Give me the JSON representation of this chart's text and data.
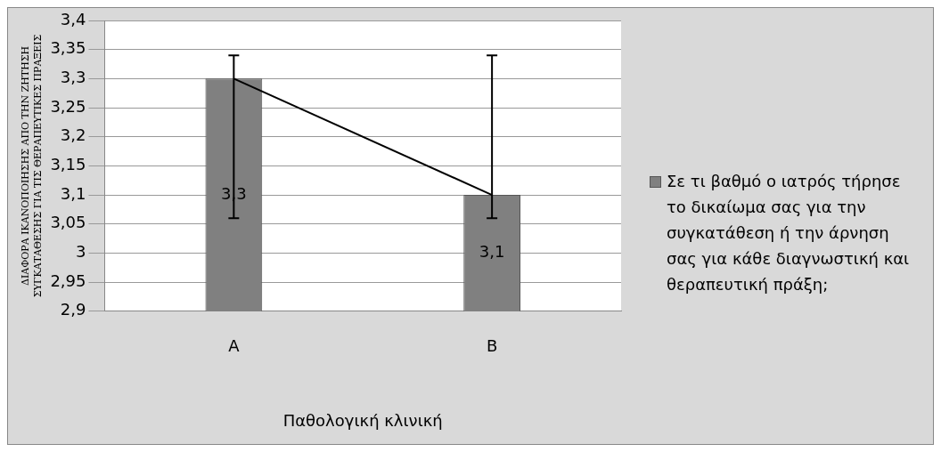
{
  "chart_data": {
    "type": "bar",
    "xlabel": "Παθολογική κλινική",
    "ylabel": "ΔΙΑΦΟΡΑ ΙΚΑΝΟΠΟΙΗΣΗΣ ΑΠΟ ΤΗΝ ΖΗΤΗΣΗ\nΣΥΓΚΑΤΑΘΕΣΗΣ ΓΙΑ ΤΙΣ ΘΕΡΑΠΕΥΤΙΚΕΣ ΠΡΑΞΕΙΣ",
    "categories": [
      "A",
      "B"
    ],
    "series": [
      {
        "name": "Σε τι βαθμό ο ιατρός τήρησε το δικαίωμα σας για την συγκατάθεση ή την άρνηση σας για κάθε διαγνωστική και θεραπευτική πράξη;",
        "color": "#808080",
        "values": [
          3.3,
          3.1
        ],
        "errors": [
          [
            3.06,
            3.34
          ],
          [
            3.06,
            3.34
          ]
        ],
        "value_labels": [
          "3,3",
          "3,1"
        ]
      },
      {
        "type": "line",
        "color": "#000000",
        "values": [
          3.3,
          3.1
        ],
        "marker": "none"
      }
    ],
    "ylim": [
      2.9,
      3.4
    ],
    "yticks": [
      {
        "value": 2.9,
        "label": "2,9"
      },
      {
        "value": 2.95,
        "label": "2,95"
      },
      3,
      {
        "value": 3.05,
        "label": "3,05"
      },
      {
        "value": 3.1,
        "label": "3,1"
      },
      {
        "value": 3.15,
        "label": "3,15"
      },
      {
        "value": 3.2,
        "label": "3,2"
      },
      {
        "value": 3.25,
        "label": "3,25"
      },
      {
        "value": 3.3,
        "label": "3,3"
      },
      {
        "value": 3.35,
        "label": "3,35"
      },
      {
        "value": 3.4,
        "label": "3,4"
      }
    ],
    "grid": "y",
    "legend": "right"
  }
}
